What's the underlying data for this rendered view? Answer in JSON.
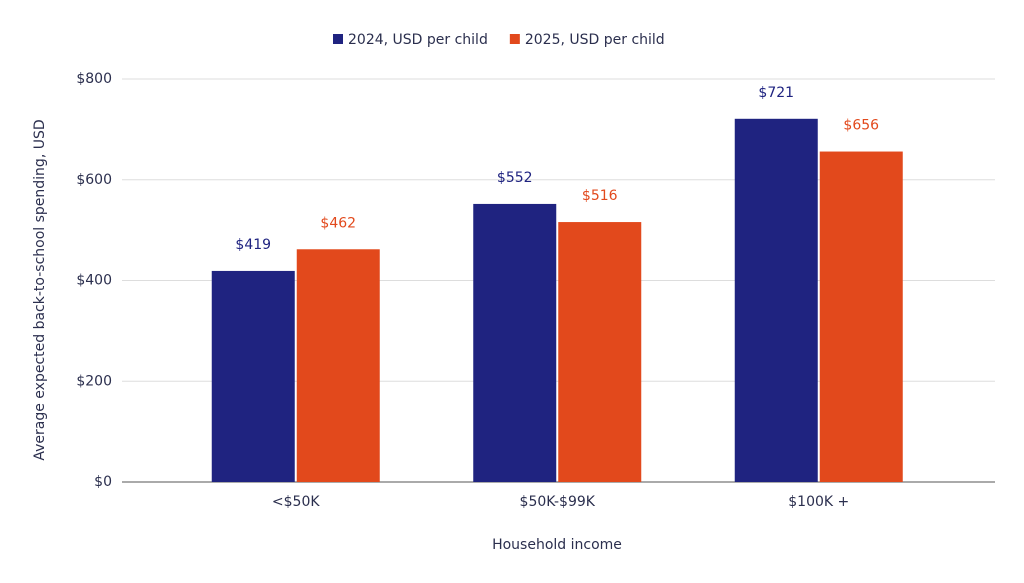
{
  "chart_data": {
    "type": "bar",
    "x_label": "Household income",
    "y_label": "Average expected back-to-school spending, USD",
    "categories": [
      "<$50K",
      "$50K-$99K",
      "$100K +"
    ],
    "series": [
      {
        "name": "2024, USD per child",
        "color": "#1f2380",
        "values": [
          419,
          552,
          721
        ],
        "value_labels": [
          "$419",
          "$552",
          "$721"
        ]
      },
      {
        "name": "2025, USD per child",
        "color": "#e2491c",
        "values": [
          462,
          516,
          656
        ],
        "value_labels": [
          "$462",
          "$516",
          "$656"
        ]
      }
    ],
    "ylim": [
      0,
      800
    ],
    "yticks": [
      {
        "value": 0,
        "label": "$0"
      },
      {
        "value": 200,
        "label": "$200"
      },
      {
        "value": 400,
        "label": "$400"
      },
      {
        "value": 600,
        "label": "$600"
      },
      {
        "value": 800,
        "label": "$800"
      }
    ],
    "grid": true,
    "legend": "top"
  }
}
